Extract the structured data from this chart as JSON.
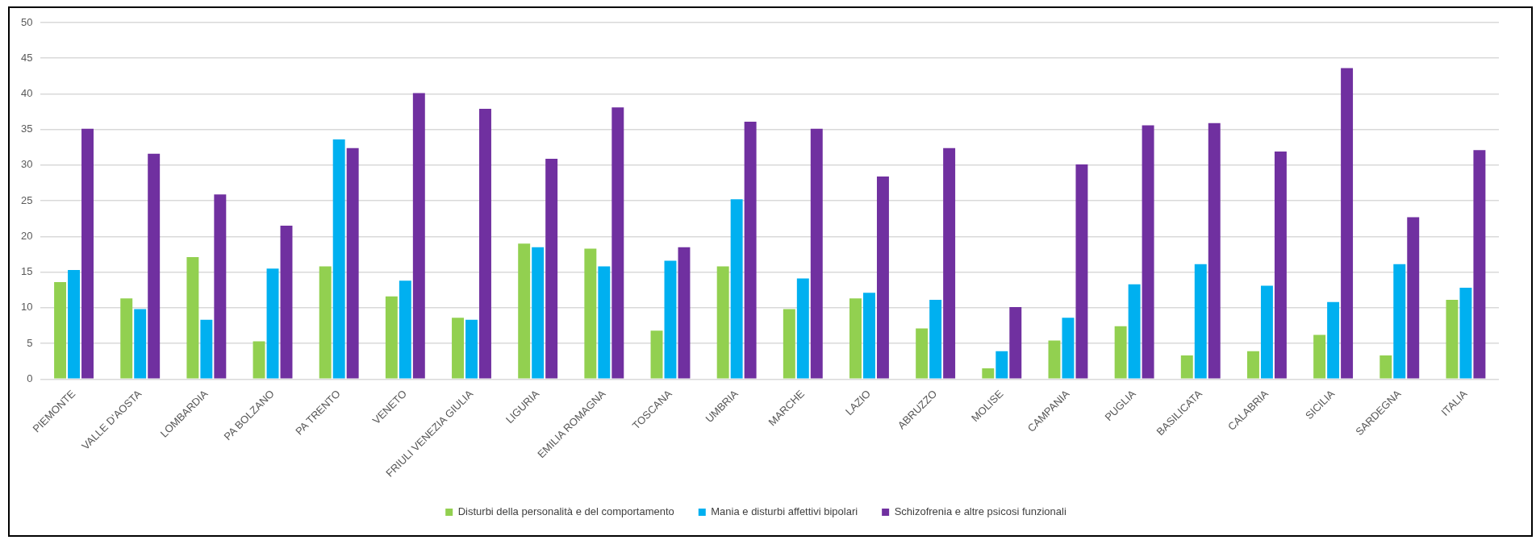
{
  "chart_data": {
    "type": "bar",
    "categories": [
      "PIEMONTE",
      "VALLE D'AOSTA",
      "LOMBARDIA",
      "PA BOLZANO",
      "PA TRENTO",
      "VENETO",
      "FRIULI VENEZIA GIULIA",
      "LIGURIA",
      "EMILIA ROMAGNA",
      "TOSCANA",
      "UMBRIA",
      "MARCHE",
      "LAZIO",
      "ABRUZZO",
      "MOLISE",
      "CAMPANIA",
      "PUGLIA",
      "BASILICATA",
      "CALABRIA",
      "SICILIA",
      "SARDEGNA",
      "ITALIA"
    ],
    "series": [
      {
        "name": "Disturbi della personalità e del comportamento",
        "color": "#92d050",
        "values": [
          13.6,
          11.3,
          17.1,
          5.3,
          15.8,
          11.6,
          8.6,
          19.0,
          18.3,
          6.8,
          15.8,
          9.8,
          11.3,
          7.1,
          1.5,
          5.4,
          7.4,
          3.3,
          3.9,
          6.2,
          3.3,
          11.1
        ]
      },
      {
        "name": "Mania e disturbi affettivi bipolari",
        "color": "#00b0f0",
        "values": [
          15.3,
          9.8,
          8.3,
          15.5,
          33.6,
          13.8,
          8.3,
          18.5,
          15.8,
          16.6,
          25.2,
          14.1,
          12.1,
          11.1,
          3.9,
          8.6,
          13.3,
          16.1,
          13.1,
          10.8,
          16.1,
          12.8
        ]
      },
      {
        "name": "Schizofrenia e altre psicosi funzionali",
        "color": "#7030a0",
        "values": [
          35.1,
          31.6,
          25.9,
          21.5,
          32.4,
          40.1,
          37.9,
          30.9,
          38.1,
          18.5,
          36.1,
          35.1,
          28.4,
          32.4,
          10.1,
          30.1,
          35.6,
          35.9,
          31.9,
          43.6,
          22.7,
          32.1
        ]
      }
    ],
    "ylim": [
      0,
      50
    ],
    "yticks": [
      0,
      5,
      10,
      15,
      20,
      25,
      30,
      35,
      40,
      45,
      50
    ],
    "grid": "y",
    "legend": "bottom"
  }
}
